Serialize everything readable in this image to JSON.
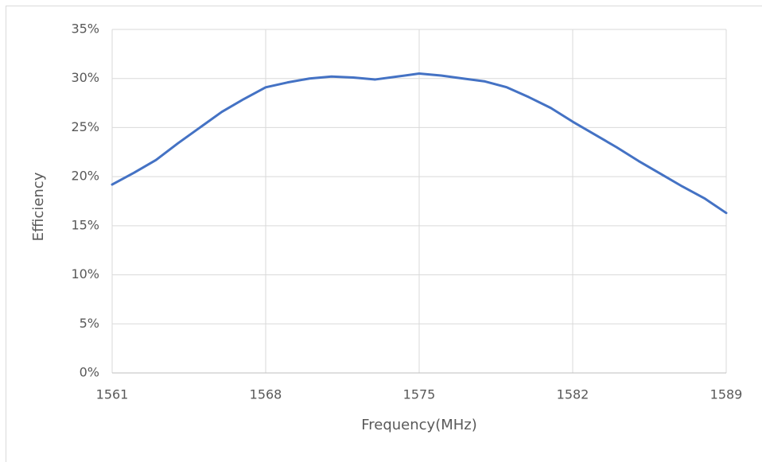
{
  "chart_data": {
    "type": "line",
    "x_label": "Frequency(MHz)",
    "y_label": "Efficiency",
    "x": [
      1561,
      1562,
      1563,
      1564,
      1565,
      1566,
      1567,
      1568,
      1569,
      1570,
      1571,
      1572,
      1573,
      1574,
      1575,
      1576,
      1577,
      1578,
      1579,
      1580,
      1581,
      1582,
      1583,
      1584,
      1585,
      1586,
      1587,
      1588,
      1589
    ],
    "values": [
      19.2,
      20.4,
      21.7,
      23.4,
      25.0,
      26.6,
      27.9,
      29.1,
      29.6,
      30.0,
      30.2,
      30.1,
      29.9,
      30.2,
      30.5,
      30.3,
      30.0,
      29.7,
      29.1,
      28.1,
      27.0,
      25.6,
      24.3,
      23.0,
      21.6,
      20.3,
      19.0,
      17.8,
      16.3
    ],
    "color": "#4472c4",
    "xlim": [
      1561,
      1589
    ],
    "xticks": [
      1561,
      1568,
      1575,
      1582,
      1589
    ],
    "ylim": [
      0,
      35
    ],
    "yticks": [
      {
        "value": 0,
        "label": "0%"
      },
      {
        "value": 5,
        "label": "5%"
      },
      {
        "value": 10,
        "label": "10%"
      },
      {
        "value": 15,
        "label": "15%"
      },
      {
        "value": 20,
        "label": "20%"
      },
      {
        "value": 25,
        "label": "25%"
      },
      {
        "value": 30,
        "label": "30%"
      },
      {
        "value": 35,
        "label": "35%"
      }
    ],
    "grid": true
  }
}
